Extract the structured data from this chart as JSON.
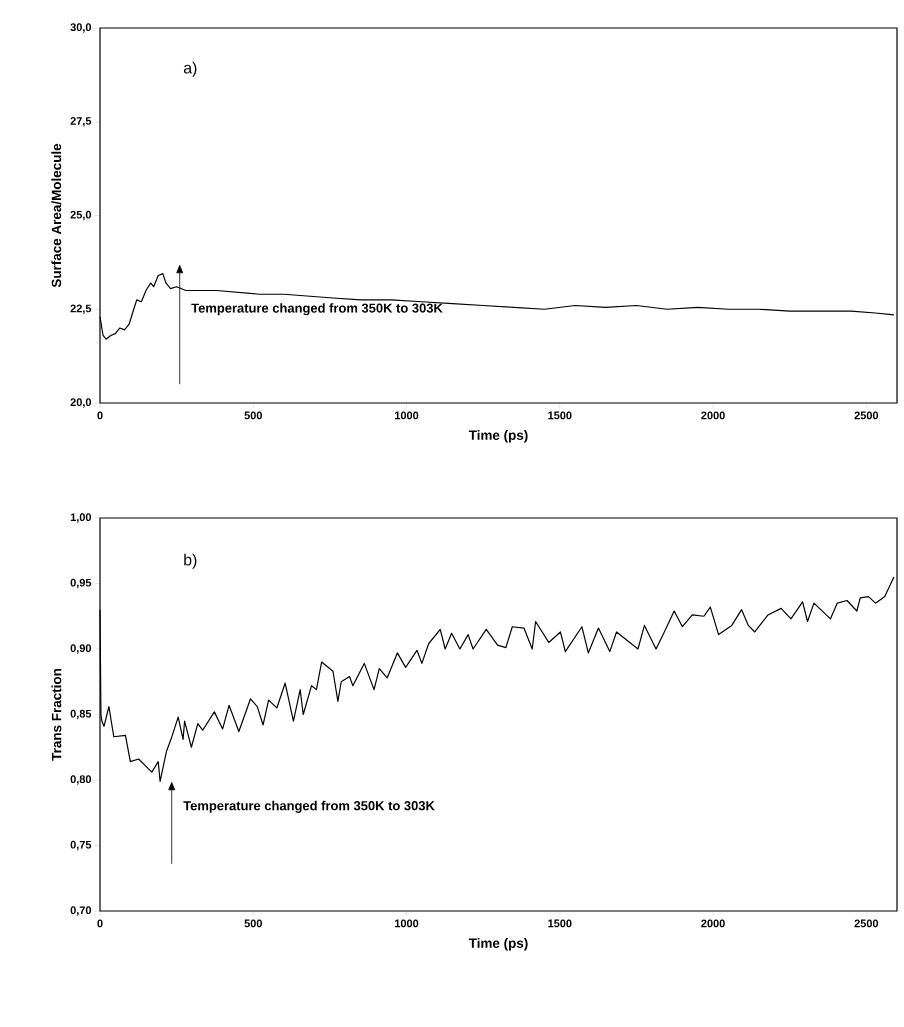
{
  "chart_data": [
    {
      "type": "line",
      "xlabel": "Time (ps)",
      "ylabel": "Surface Area/Molecule",
      "annotations": [
        "a)",
        "Temperature changed from 350K to 303K"
      ],
      "x": [
        0,
        10,
        20,
        35,
        50,
        65,
        80,
        95,
        110,
        120,
        135,
        150,
        165,
        175,
        190,
        205,
        215,
        230,
        250,
        280,
        320,
        380,
        450,
        520,
        600,
        680,
        760,
        850,
        950,
        1050,
        1150,
        1250,
        1350,
        1450,
        1550,
        1650,
        1750,
        1850,
        1950,
        2050,
        2150,
        2250,
        2350,
        2450,
        2530,
        2590
      ],
      "series": [
        {
          "color": "#000000",
          "values": [
            22.3,
            21.8,
            21.7,
            21.8,
            21.85,
            22.0,
            21.95,
            22.1,
            22.5,
            22.75,
            22.7,
            23.0,
            23.2,
            23.1,
            23.4,
            23.45,
            23.2,
            23.05,
            23.1,
            23.0,
            23.0,
            23.0,
            22.95,
            22.9,
            22.9,
            22.85,
            22.8,
            22.75,
            22.75,
            22.7,
            22.65,
            22.6,
            22.55,
            22.5,
            22.6,
            22.55,
            22.6,
            22.5,
            22.55,
            22.5,
            22.5,
            22.45,
            22.45,
            22.45,
            22.4,
            22.35
          ]
        }
      ],
      "xlim": [
        0,
        2600
      ],
      "ylim": [
        20,
        30
      ],
      "xticks": [
        0,
        500,
        1000,
        1500,
        2000,
        2500
      ],
      "yticks": [
        {
          "value": 20,
          "label": "20,0"
        },
        {
          "value": 22.5,
          "label": "22,5"
        },
        {
          "value": 25,
          "label": "25,0"
        },
        {
          "value": 27.5,
          "label": "27,5"
        },
        {
          "value": 30,
          "label": "30,0"
        }
      ]
    },
    {
      "type": "line",
      "xlabel": "Time (ps)",
      "ylabel": "Trans Fraction",
      "annotations": [
        "b)",
        "Temperature changed from 350K to 303K"
      ],
      "x": [
        0,
        3,
        6,
        13,
        29,
        45,
        83,
        99,
        126,
        169,
        190,
        196,
        217,
        233,
        255,
        271,
        276,
        298,
        319,
        335,
        373,
        400,
        421,
        453,
        491,
        513,
        532,
        550,
        577,
        604,
        631,
        653,
        663,
        690,
        706,
        723,
        739,
        760,
        776,
        787,
        814,
        825,
        862,
        894,
        911,
        937,
        970,
        997,
        1034,
        1050,
        1072,
        1110,
        1126,
        1147,
        1174,
        1201,
        1217,
        1260,
        1297,
        1324,
        1345,
        1383,
        1410,
        1421,
        1464,
        1502,
        1518,
        1572,
        1593,
        1626,
        1663,
        1685,
        1755,
        1776,
        1814,
        1841,
        1873,
        1900,
        1932,
        1970,
        1991,
        2018,
        2061,
        2093,
        2115,
        2136,
        2179,
        2222,
        2254,
        2292,
        2308,
        2329,
        2383,
        2405,
        2437,
        2469,
        2480,
        2507,
        2530,
        2560,
        2590
      ],
      "series": [
        {
          "color": "#000000",
          "values": [
            0.93,
            0.85,
            0.845,
            0.841,
            0.856,
            0.833,
            0.834,
            0.814,
            0.816,
            0.806,
            0.814,
            0.799,
            0.822,
            0.832,
            0.848,
            0.831,
            0.845,
            0.825,
            0.843,
            0.838,
            0.852,
            0.839,
            0.857,
            0.837,
            0.862,
            0.856,
            0.842,
            0.861,
            0.855,
            0.874,
            0.845,
            0.869,
            0.85,
            0.872,
            0.869,
            0.89,
            0.887,
            0.883,
            0.86,
            0.875,
            0.879,
            0.872,
            0.889,
            0.869,
            0.885,
            0.878,
            0.897,
            0.886,
            0.899,
            0.889,
            0.904,
            0.915,
            0.9,
            0.912,
            0.9,
            0.911,
            0.9,
            0.915,
            0.903,
            0.901,
            0.917,
            0.916,
            0.9,
            0.921,
            0.905,
            0.913,
            0.898,
            0.917,
            0.897,
            0.916,
            0.898,
            0.913,
            0.9,
            0.918,
            0.9,
            0.913,
            0.929,
            0.917,
            0.926,
            0.925,
            0.932,
            0.911,
            0.918,
            0.93,
            0.918,
            0.913,
            0.926,
            0.931,
            0.923,
            0.936,
            0.921,
            0.935,
            0.923,
            0.935,
            0.937,
            0.929,
            0.939,
            0.94,
            0.935,
            0.94,
            0.955
          ]
        }
      ],
      "xlim": [
        0,
        2600
      ],
      "ylim": [
        0.7,
        1.0
      ],
      "xticks": [
        0,
        500,
        1000,
        1500,
        2000,
        2500
      ],
      "yticks": [
        {
          "value": 0.7,
          "label": "0,70"
        },
        {
          "value": 0.75,
          "label": "0,75"
        },
        {
          "value": 0.8,
          "label": "0,80"
        },
        {
          "value": 0.85,
          "label": "0,85"
        },
        {
          "value": 0.9,
          "label": "0,90"
        },
        {
          "value": 0.95,
          "label": "0,95"
        },
        {
          "value": 1.0,
          "label": "1,00"
        }
      ]
    }
  ]
}
